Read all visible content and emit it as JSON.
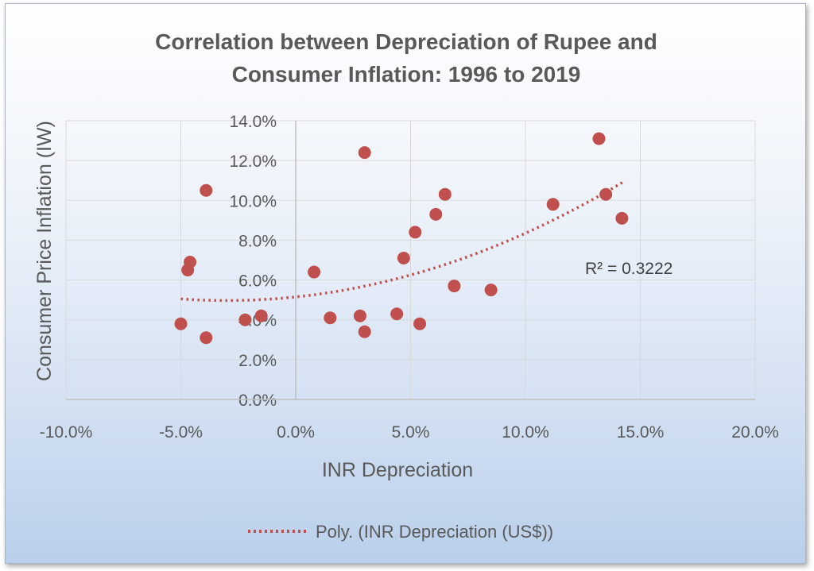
{
  "chart_data": {
    "type": "scatter",
    "title_line1": "Correlation between Depreciation of Rupee and",
    "title_line2": "Consumer Inflation: 1996 to 2019",
    "xlabel": "INR Depreciation",
    "ylabel": "Consumer Price Inflation (IW)",
    "xlim": [
      -0.1,
      0.2
    ],
    "ylim": [
      0.0,
      0.14
    ],
    "x_ticks": [
      -0.1,
      -0.05,
      0.0,
      0.05,
      0.1,
      0.15,
      0.2
    ],
    "x_tick_labels": [
      "-10.0%",
      "-5.0%",
      "0.0%",
      "5.0%",
      "10.0%",
      "15.0%",
      "20.0%"
    ],
    "y_ticks": [
      0.0,
      0.02,
      0.04,
      0.06,
      0.08,
      0.1,
      0.12,
      0.14
    ],
    "y_tick_labels": [
      "0.0%",
      "2.0%",
      "4.0%",
      "6.0%",
      "8.0%",
      "10.0%",
      "12.0%",
      "14.0%"
    ],
    "grid": true,
    "points": [
      {
        "x": -0.05,
        "y": 0.038
      },
      {
        "x": -0.047,
        "y": 0.065
      },
      {
        "x": -0.046,
        "y": 0.069
      },
      {
        "x": -0.039,
        "y": 0.105
      },
      {
        "x": -0.039,
        "y": 0.031
      },
      {
        "x": -0.022,
        "y": 0.04
      },
      {
        "x": -0.015,
        "y": 0.042
      },
      {
        "x": 0.008,
        "y": 0.064
      },
      {
        "x": 0.015,
        "y": 0.041
      },
      {
        "x": 0.028,
        "y": 0.042
      },
      {
        "x": 0.03,
        "y": 0.124
      },
      {
        "x": 0.03,
        "y": 0.034
      },
      {
        "x": 0.044,
        "y": 0.043
      },
      {
        "x": 0.047,
        "y": 0.071
      },
      {
        "x": 0.052,
        "y": 0.084
      },
      {
        "x": 0.054,
        "y": 0.038
      },
      {
        "x": 0.061,
        "y": 0.093
      },
      {
        "x": 0.065,
        "y": 0.103
      },
      {
        "x": 0.069,
        "y": 0.057
      },
      {
        "x": 0.085,
        "y": 0.055
      },
      {
        "x": 0.112,
        "y": 0.098
      },
      {
        "x": 0.132,
        "y": 0.131
      },
      {
        "x": 0.135,
        "y": 0.103
      },
      {
        "x": 0.142,
        "y": 0.091
      }
    ],
    "trendline": {
      "type": "polynomial",
      "order": 2,
      "coefficients": [
        2.0,
        0.12,
        0.0515
      ],
      "x_range": [
        -0.05,
        0.143
      ],
      "r_squared_label": "R² = 0.3222"
    },
    "legend_label": "Poly. (INR Depreciation (US$))",
    "legend_position": "bottom",
    "marker_color": "#c0504d",
    "trend_color": "#c0504d",
    "grid_color": "#d9d9d9"
  }
}
